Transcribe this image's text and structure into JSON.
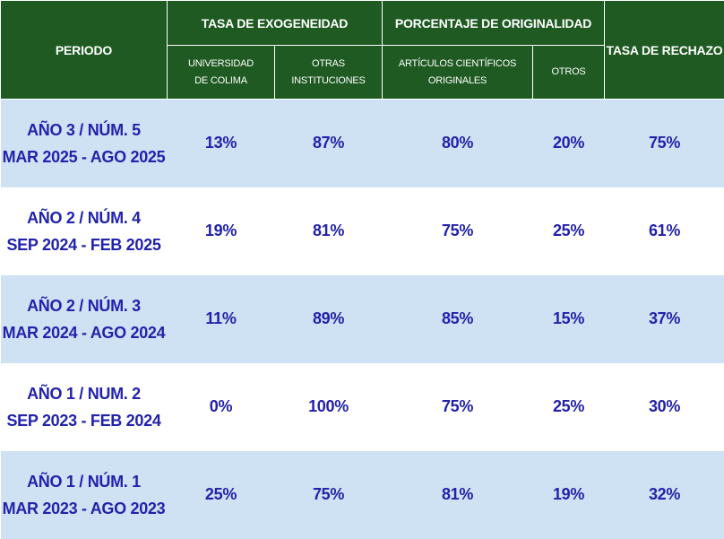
{
  "header": {
    "periodo": "PERIODO",
    "exogeneidad": "TASA DE EXOGENEIDAD",
    "originalidad": "PORCENTAJE DE ORIGINALIDAD",
    "rechazo": "TASA DE  RECHAZO",
    "sub": {
      "ucol_1": "UNIVERSIDAD",
      "ucol_2": "DE COLIMA",
      "otras_1": "OTRAS",
      "otras_2": "INSTITUCIONES",
      "art_1": "ARTÍCULOS CIENTÍFICOS",
      "art_2": "ORIGINALES",
      "otros": "OTROS"
    }
  },
  "rows": [
    {
      "line1": "AÑO  3 / NÚM. 5",
      "line2": "MAR 2025 - AGO 2025",
      "ucol": "13%",
      "otras": "87%",
      "originales": "80%",
      "otros": "20%",
      "rechazo": "75%"
    },
    {
      "line1": "AÑO 2 / NÚM. 4",
      "line2": "SEP 2024 - FEB 2025",
      "ucol": "19%",
      "otras": "81%",
      "originales": "75%",
      "otros": "25%",
      "rechazo": "61%"
    },
    {
      "line1": "AÑO 2 / NÚM. 3",
      "line2": "MAR 2024 - AGO 2024",
      "ucol": "11%",
      "otras": "89%",
      "originales": "85%",
      "otros": "15%",
      "rechazo": "37%"
    },
    {
      "line1": "AÑO 1 / NUM. 2",
      "line2": "SEP 2023 - FEB 2024",
      "ucol": "0%",
      "otras": "100%",
      "originales": "75%",
      "otros": "25%",
      "rechazo": "30%"
    },
    {
      "line1": "AÑO 1 / NÚM. 1",
      "line2": "MAR 2023 - AGO 2023",
      "ucol": "25%",
      "otras": "75%",
      "originales": "81%",
      "otros": "19%",
      "rechazo": "32%"
    }
  ],
  "colors": {
    "header_bg": "#1e5a22",
    "row_band": "#cfe2f3",
    "value_text": "#2222aa"
  }
}
